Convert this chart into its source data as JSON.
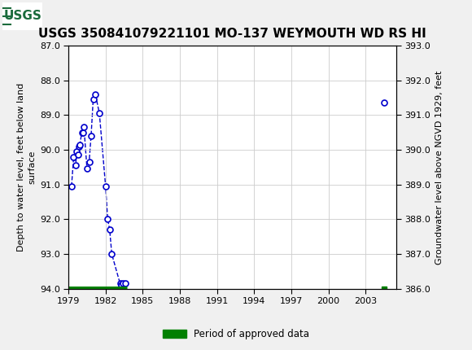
{
  "title": "USGS 350841079221101 MO-137 WEYMOUTH WD RS HI",
  "ylabel_left": "Depth to water level, feet below land\nsurface",
  "ylabel_right": "Groundwater level above NGVD 1929, feet",
  "xlim": [
    1979,
    2005.5
  ],
  "ylim_left": [
    94.0,
    87.0
  ],
  "ylim_right": [
    386.0,
    393.0
  ],
  "xticks": [
    1979,
    1982,
    1985,
    1988,
    1991,
    1994,
    1997,
    2000,
    2003
  ],
  "yticks_left": [
    87.0,
    88.0,
    89.0,
    90.0,
    91.0,
    92.0,
    93.0,
    94.0
  ],
  "yticks_right": [
    393.0,
    392.0,
    391.0,
    390.0,
    389.0,
    388.0,
    387.0,
    386.0
  ],
  "header_color": "#1a6b3c",
  "data_points": [
    [
      1979.25,
      91.05
    ],
    [
      1979.42,
      90.2
    ],
    [
      1979.58,
      90.45
    ],
    [
      1979.67,
      90.05
    ],
    [
      1979.75,
      90.15
    ],
    [
      1979.83,
      89.9
    ],
    [
      1979.92,
      89.85
    ],
    [
      1980.08,
      89.5
    ],
    [
      1980.17,
      89.5
    ],
    [
      1980.25,
      89.35
    ],
    [
      1980.5,
      90.55
    ],
    [
      1980.67,
      90.35
    ],
    [
      1980.83,
      89.6
    ],
    [
      1981.0,
      88.55
    ],
    [
      1981.17,
      88.4
    ],
    [
      1981.5,
      88.95
    ],
    [
      1982.0,
      91.05
    ],
    [
      1982.17,
      92.0
    ],
    [
      1982.33,
      92.3
    ],
    [
      1982.5,
      93.0
    ],
    [
      1983.17,
      93.85
    ],
    [
      1983.25,
      93.9
    ],
    [
      1983.42,
      93.85
    ],
    [
      1983.58,
      93.85
    ],
    [
      2004.5,
      88.65
    ]
  ],
  "approved_period_start": 1979.0,
  "approved_period_end": 1983.75,
  "approved_period_y": 94.0,
  "approved_point_x": 2004.5,
  "approved_point_y": 94.0,
  "dot_color": "#0000cc",
  "line_color": "#0000cc",
  "approved_color": "#008000",
  "background_color": "#f0f0f0",
  "plot_bg_color": "#ffffff",
  "grid_color": "#cccccc",
  "title_fontsize": 11,
  "axis_label_fontsize": 8,
  "tick_fontsize": 8
}
